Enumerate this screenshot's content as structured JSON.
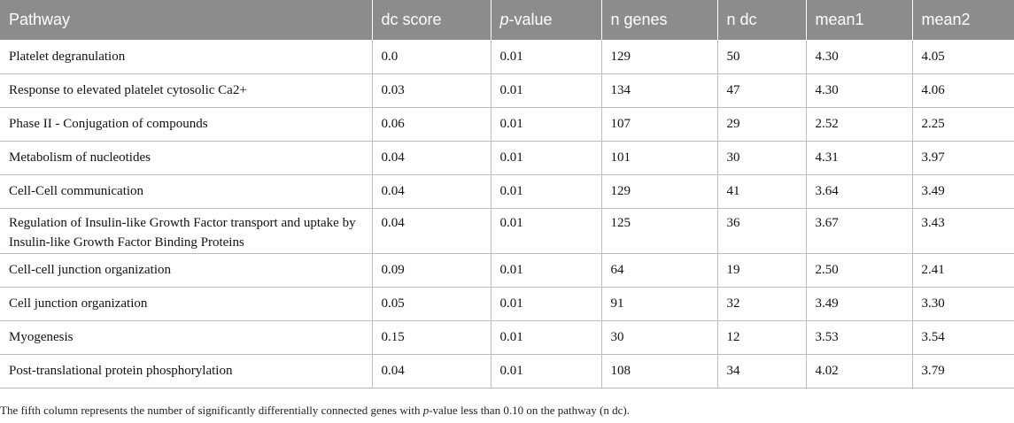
{
  "table": {
    "headers": {
      "pathway": "Pathway",
      "dc_score": "dc score",
      "p_value_italic": "p",
      "p_value_rest": "-value",
      "n_genes": "n genes",
      "n_dc": "n dc",
      "mean1": "mean1",
      "mean2": "mean2"
    },
    "rows": [
      {
        "pathway": "Platelet degranulation",
        "dc_score": "0.0",
        "p_value": "0.01",
        "n_genes": "129",
        "n_dc": "50",
        "mean1": "4.30",
        "mean2": "4.05"
      },
      {
        "pathway": "Response to elevated platelet cytosolic Ca2+",
        "dc_score": "0.03",
        "p_value": "0.01",
        "n_genes": "134",
        "n_dc": "47",
        "mean1": "4.30",
        "mean2": "4.06"
      },
      {
        "pathway": "Phase II - Conjugation of compounds",
        "dc_score": "0.06",
        "p_value": "0.01",
        "n_genes": "107",
        "n_dc": "29",
        "mean1": "2.52",
        "mean2": "2.25"
      },
      {
        "pathway": "Metabolism of nucleotides",
        "dc_score": "0.04",
        "p_value": "0.01",
        "n_genes": "101",
        "n_dc": "30",
        "mean1": "4.31",
        "mean2": "3.97"
      },
      {
        "pathway": "Cell-Cell communication",
        "dc_score": "0.04",
        "p_value": "0.01",
        "n_genes": "129",
        "n_dc": "41",
        "mean1": "3.64",
        "mean2": "3.49"
      },
      {
        "pathway": "Regulation of Insulin-like Growth Factor transport and uptake by Insulin-like Growth Factor Binding Proteins",
        "dc_score": "0.04",
        "p_value": "0.01",
        "n_genes": "125",
        "n_dc": "36",
        "mean1": "3.67",
        "mean2": "3.43"
      },
      {
        "pathway": "Cell-cell junction organization",
        "dc_score": "0.09",
        "p_value": "0.01",
        "n_genes": "64",
        "n_dc": "19",
        "mean1": "2.50",
        "mean2": "2.41"
      },
      {
        "pathway": "Cell junction organization",
        "dc_score": "0.05",
        "p_value": "0.01",
        "n_genes": "91",
        "n_dc": "32",
        "mean1": "3.49",
        "mean2": "3.30"
      },
      {
        "pathway": "Myogenesis",
        "dc_score": "0.15",
        "p_value": "0.01",
        "n_genes": "30",
        "n_dc": "12",
        "mean1": "3.53",
        "mean2": "3.54"
      },
      {
        "pathway": "Post-translational protein phosphorylation",
        "dc_score": "0.04",
        "p_value": "0.01",
        "n_genes": "108",
        "n_dc": "34",
        "mean1": "4.02",
        "mean2": "3.79"
      }
    ]
  },
  "footnote": {
    "part1": "The fifth column represents the number of significantly differentially connected genes with ",
    "italic": "p",
    "part2": "-value less than 0.10 on the pathway (n dc)."
  }
}
